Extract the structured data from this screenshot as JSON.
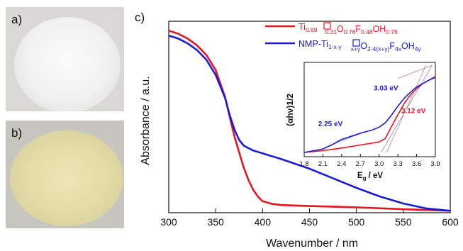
{
  "panels": {
    "a_label": "a)",
    "b_label": "b)",
    "c_label": "c)"
  },
  "photos": {
    "a": {
      "powder_color": "#f3f3f1",
      "background_color": "#d9d8d4"
    },
    "b": {
      "powder_color": "#e6dfae",
      "background_color": "#c7c5c0"
    }
  },
  "legend": {
    "entries": [
      {
        "color": "#e8141e",
        "prefix": "Ti",
        "sub1": "0.69",
        "mid1": "",
        "sub2": "0.31",
        "mid2": "O",
        "sub3": "0.76",
        "mid3": "F",
        "sub4": "0.48",
        "mid4": "OH",
        "sub5": "0.76"
      },
      {
        "color": "#1a1adb",
        "prefix": "NMP-Ti",
        "sub1": "1-x-y",
        "mid1": "",
        "sub2": "x+y",
        "mid2": "O",
        "sub3": "2-4(x+y)",
        "mid3": "F",
        "sub4": "4x",
        "mid4": "OH",
        "sub5": "4y"
      }
    ]
  },
  "chart_data": [
    {
      "type": "line",
      "title": "",
      "xlabel": "Wavenumber / nm",
      "ylabel": "Absorbance / a.u.",
      "xlim": [
        300,
        600
      ],
      "ylim": [
        0,
        1
      ],
      "x_ticks": [
        300,
        350,
        400,
        450,
        500,
        550,
        600
      ],
      "y_ticks": [],
      "grid": false,
      "legend_position": "top-right",
      "series": [
        {
          "color": "#e8141e",
          "points": [
            [
              300,
              0.951
            ],
            [
              310,
              0.935
            ],
            [
              320,
              0.91
            ],
            [
              330,
              0.875
            ],
            [
              340,
              0.825
            ],
            [
              350,
              0.745
            ],
            [
              360,
              0.605
            ],
            [
              365,
              0.5
            ],
            [
              370,
              0.4
            ],
            [
              375,
              0.315
            ],
            [
              380,
              0.235
            ],
            [
              385,
              0.17
            ],
            [
              390,
              0.12
            ],
            [
              395,
              0.085
            ],
            [
              400,
              0.06
            ],
            [
              410,
              0.046
            ],
            [
              420,
              0.04
            ],
            [
              450,
              0.035
            ],
            [
              500,
              0.028
            ],
            [
              550,
              0.018
            ],
            [
              600,
              0.01
            ]
          ]
        },
        {
          "color": "#1a1adb",
          "points": [
            [
              300,
              0.925
            ],
            [
              310,
              0.91
            ],
            [
              320,
              0.885
            ],
            [
              330,
              0.85
            ],
            [
              340,
              0.8
            ],
            [
              350,
              0.72
            ],
            [
              360,
              0.6
            ],
            [
              365,
              0.51
            ],
            [
              370,
              0.435
            ],
            [
              375,
              0.38
            ],
            [
              380,
              0.35
            ],
            [
              390,
              0.325
            ],
            [
              400,
              0.31
            ],
            [
              420,
              0.28
            ],
            [
              450,
              0.23
            ],
            [
              475,
              0.18
            ],
            [
              500,
              0.13
            ],
            [
              525,
              0.085
            ],
            [
              550,
              0.048
            ],
            [
              575,
              0.022
            ],
            [
              600,
              0.01
            ]
          ]
        }
      ]
    },
    {
      "type": "line",
      "title": "",
      "xlabel_main": "E",
      "xlabel_sub": "g",
      "xlabel_unit": " / eV",
      "ylabel": "(αhν)1/2",
      "xlim": [
        1.8,
        3.9
      ],
      "ylim": [
        0,
        1
      ],
      "x_ticks": [
        "1.8",
        "2.1",
        "2.4",
        "2.7",
        "3.0",
        "3.3",
        "3.6",
        "3.9"
      ],
      "grid": false,
      "annotations": [
        {
          "text": "3.03 eV",
          "color": "#1a1adb",
          "x": 3.11,
          "y": 0.71
        },
        {
          "text": "2.25 eV",
          "color": "#1a1adb",
          "x": 2.22,
          "y": 0.3
        },
        {
          "text": "3.12 eV",
          "color": "#e8141e",
          "x": 3.55,
          "y": 0.45
        }
      ],
      "series": [
        {
          "color": "#e8141e",
          "points": [
            [
              1.8,
              0.0
            ],
            [
              2.1,
              0.02
            ],
            [
              2.4,
              0.05
            ],
            [
              2.7,
              0.085
            ],
            [
              3.0,
              0.12
            ],
            [
              3.1,
              0.16
            ],
            [
              3.2,
              0.3
            ],
            [
              3.3,
              0.43
            ],
            [
              3.4,
              0.56
            ],
            [
              3.5,
              0.66
            ],
            [
              3.6,
              0.73
            ],
            [
              3.7,
              0.79
            ],
            [
              3.8,
              0.83
            ],
            [
              3.9,
              0.87
            ]
          ]
        },
        {
          "color": "#1a1adb",
          "points": [
            [
              1.8,
              0.0
            ],
            [
              2.1,
              0.04
            ],
            [
              2.25,
              0.09
            ],
            [
              2.4,
              0.15
            ],
            [
              2.7,
              0.22
            ],
            [
              2.9,
              0.26
            ],
            [
              3.0,
              0.29
            ],
            [
              3.1,
              0.34
            ],
            [
              3.2,
              0.43
            ],
            [
              3.3,
              0.53
            ],
            [
              3.4,
              0.62
            ],
            [
              3.5,
              0.69
            ],
            [
              3.6,
              0.75
            ],
            [
              3.7,
              0.79
            ],
            [
              3.8,
              0.83
            ],
            [
              3.9,
              0.86
            ]
          ]
        }
      ],
      "tangents": [
        {
          "color": "#d97a7a",
          "from": [
            3.12,
            0.0
          ],
          "to": [
            3.75,
            1.0
          ]
        },
        {
          "color": "#8a8ad8",
          "from": [
            3.03,
            0.0
          ],
          "to": [
            3.85,
            1.0
          ]
        },
        {
          "color": "#8a8ad8",
          "from": [
            2.25,
            0.09
          ],
          "to": [
            2.75,
            0.23
          ]
        },
        {
          "color": "#d97a7a",
          "from": [
            3.3,
            0.85
          ],
          "to": [
            3.85,
            1.0
          ]
        }
      ]
    }
  ]
}
